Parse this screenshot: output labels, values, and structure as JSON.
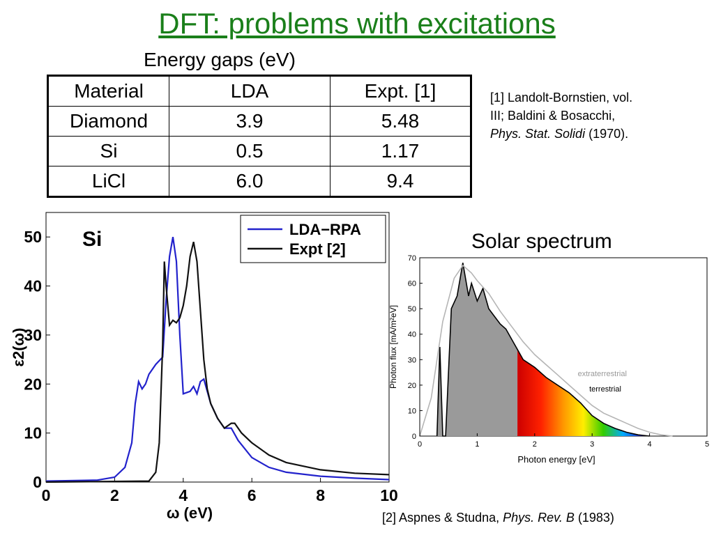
{
  "title": "DFT: problems with excitations",
  "table": {
    "caption": "Energy gaps (eV)",
    "headers": [
      "Material",
      "LDA",
      "Expt. [1]"
    ],
    "rows": [
      [
        "Diamond",
        "3.9",
        "5.48"
      ],
      [
        "Si",
        "0.5",
        "1.17"
      ],
      [
        "LiCl",
        "6.0",
        "9.4"
      ]
    ]
  },
  "reference1": {
    "line1": "[1] Landolt-Bornstien, vol.",
    "line2": "III; Baldini & Bosacchi,",
    "journal": "Phys. Stat. Solidi",
    "year": "(1970)."
  },
  "reference2": {
    "prefix": "[2] Aspnes & Studna,",
    "journal": "Phys. Rev. B",
    "year": "(1983)"
  },
  "solar_title": "Solar spectrum",
  "chart_data": [
    {
      "type": "line",
      "title": "Si",
      "xlabel": "ω (eV)",
      "ylabel": "ε2(ω)",
      "xlim": [
        0,
        10
      ],
      "ylim": [
        0,
        55
      ],
      "xticks": [
        "0",
        "2",
        "4",
        "6",
        "8",
        "10"
      ],
      "yticks": [
        "0",
        "10",
        "20",
        "30",
        "40",
        "50"
      ],
      "legend_position": "top-right",
      "colors": {
        "LDA-RPA": "#2222cc",
        "Expt [2]": "#111111"
      },
      "series": [
        {
          "name": "LDA−RPA",
          "x": [
            0,
            1.5,
            2.0,
            2.3,
            2.5,
            2.6,
            2.7,
            2.8,
            2.9,
            3.0,
            3.2,
            3.4,
            3.5,
            3.6,
            3.7,
            3.8,
            3.9,
            4.0,
            4.2,
            4.3,
            4.4,
            4.5,
            4.6,
            4.8,
            5.0,
            5.2,
            5.4,
            5.6,
            6.0,
            6.5,
            7.0,
            8.0,
            9.0,
            10.0
          ],
          "y": [
            0.2,
            0.4,
            1.0,
            3.0,
            8.0,
            16.0,
            20.5,
            19.0,
            20.0,
            22.0,
            24.0,
            25.5,
            37.0,
            46.0,
            50.0,
            45.0,
            30.0,
            18.0,
            18.5,
            19.5,
            18.0,
            20.5,
            21.0,
            16.0,
            13.0,
            11.0,
            11.0,
            8.5,
            5.0,
            3.0,
            2.0,
            1.2,
            0.8,
            0.5
          ]
        },
        {
          "name": "Expt [2]",
          "x": [
            0,
            3.0,
            3.2,
            3.3,
            3.4,
            3.45,
            3.5,
            3.6,
            3.7,
            3.8,
            3.9,
            4.0,
            4.1,
            4.2,
            4.3,
            4.4,
            4.5,
            4.6,
            4.7,
            4.8,
            5.0,
            5.2,
            5.4,
            5.5,
            5.7,
            6.0,
            6.5,
            7.0,
            8.0,
            9.0,
            10.0
          ],
          "y": [
            0,
            0.2,
            2.0,
            8.0,
            28.0,
            45.0,
            40.0,
            32.0,
            33.0,
            32.5,
            33.5,
            36.0,
            40.0,
            46.0,
            49.0,
            45.0,
            35.0,
            25.0,
            19.0,
            16.0,
            13.0,
            11.0,
            12.0,
            12.0,
            10.0,
            8.0,
            5.5,
            4.0,
            2.5,
            1.8,
            1.5
          ]
        }
      ]
    },
    {
      "type": "area",
      "xlabel": "Photon energy  [eV]",
      "ylabel": "Photon flux  [mA/m²eV]",
      "xlim": [
        0,
        5
      ],
      "ylim": [
        0,
        70
      ],
      "xticks": [
        "0",
        "1",
        "2",
        "3",
        "4",
        "5"
      ],
      "yticks": [
        "0",
        "10",
        "20",
        "30",
        "40",
        "50",
        "60",
        "70"
      ],
      "annotations": [
        "extraterrestrial",
        "terrestrial"
      ],
      "series": [
        {
          "name": "extraterrestrial",
          "x": [
            0.0,
            0.2,
            0.4,
            0.6,
            0.75,
            0.9,
            1.0,
            1.2,
            1.4,
            1.6,
            1.8,
            2.0,
            2.2,
            2.4,
            2.6,
            2.8,
            3.0,
            3.2,
            3.4,
            3.6,
            3.8,
            4.0,
            4.2,
            4.4
          ],
          "y": [
            0,
            15,
            45,
            62,
            67,
            64,
            61,
            56,
            49,
            43,
            37,
            32,
            28,
            24,
            20,
            16,
            12,
            9,
            7,
            5,
            3,
            1.5,
            0.5,
            0
          ]
        },
        {
          "name": "terrestrial",
          "x": [
            0.3,
            0.35,
            0.4,
            0.45,
            0.55,
            0.65,
            0.75,
            0.85,
            0.9,
            1.0,
            1.1,
            1.2,
            1.3,
            1.4,
            1.5,
            1.6,
            1.7,
            1.8,
            2.0,
            2.2,
            2.4,
            2.6,
            2.8,
            3.0,
            3.2,
            3.4,
            3.6,
            3.8,
            4.0
          ],
          "y": [
            0,
            35,
            0,
            0,
            50,
            55,
            68,
            55,
            60,
            53,
            58,
            50,
            47,
            44,
            42,
            38,
            34,
            30,
            27,
            23,
            20,
            17,
            13,
            8,
            5,
            3,
            1.5,
            0.5,
            0
          ]
        }
      ]
    }
  ]
}
